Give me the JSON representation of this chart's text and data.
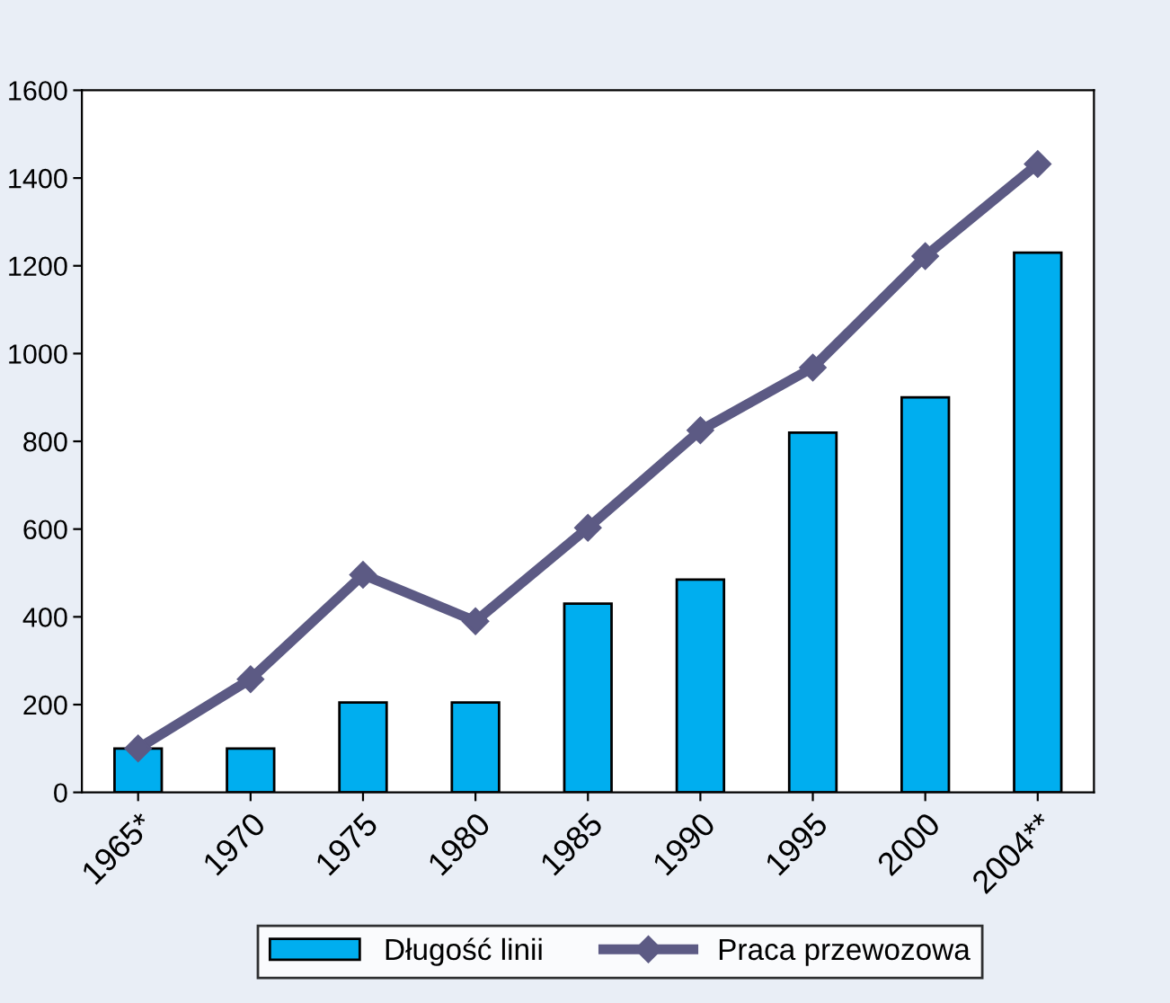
{
  "chart_data": {
    "type": "bar",
    "categories": [
      "1965*",
      "1970",
      "1975",
      "1980",
      "1985",
      "1990",
      "1995",
      "2000",
      "2004**"
    ],
    "series": [
      {
        "name": "Długość linii",
        "color": "#00aeef",
        "values": [
          100,
          100,
          205,
          205,
          430,
          485,
          820,
          900,
          1230
        ]
      },
      {
        "name": "Praca przewozowa",
        "type": "line",
        "color": "#5c5a84",
        "marker": "diamond",
        "values": [
          100,
          258,
          496,
          390,
          603,
          825,
          968,
          1222,
          1432
        ]
      }
    ],
    "ylim": [
      0,
      1600
    ],
    "yticks": [
      0,
      200,
      400,
      600,
      800,
      1000,
      1200,
      1400,
      1600
    ],
    "grid": false,
    "legend": "bottom"
  }
}
